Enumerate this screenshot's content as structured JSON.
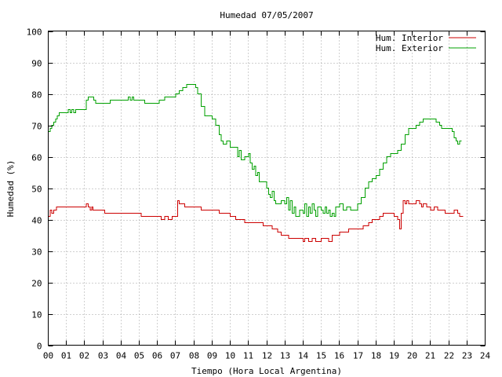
{
  "chart_data": {
    "type": "line",
    "title": "Humedad 07/05/2007",
    "xlabel": "Tiempo (Hora Local Argentina)",
    "ylabel": "Humedad (%)",
    "xlim": [
      0,
      24
    ],
    "ylim": [
      0,
      100
    ],
    "x_ticks": [
      "00",
      "01",
      "02",
      "03",
      "04",
      "05",
      "06",
      "07",
      "08",
      "09",
      "10",
      "11",
      "12",
      "13",
      "14",
      "15",
      "16",
      "17",
      "18",
      "19",
      "20",
      "21",
      "22",
      "23",
      "24"
    ],
    "y_ticks": [
      "0",
      "10",
      "20",
      "30",
      "40",
      "50",
      "60",
      "70",
      "80",
      "90",
      "100"
    ],
    "grid": true,
    "legend_position": "top-right",
    "series": [
      {
        "name": "Hum. Interior",
        "color": "#cc0000",
        "points": [
          [
            0.0,
            41
          ],
          [
            0.1,
            43
          ],
          [
            0.2,
            42
          ],
          [
            0.3,
            43
          ],
          [
            0.4,
            43
          ],
          [
            0.45,
            44
          ],
          [
            0.8,
            44
          ],
          [
            1.0,
            44
          ],
          [
            1.5,
            44
          ],
          [
            2.0,
            44
          ],
          [
            2.1,
            45
          ],
          [
            2.2,
            44
          ],
          [
            2.3,
            43
          ],
          [
            2.4,
            44
          ],
          [
            2.45,
            43
          ],
          [
            2.5,
            43
          ],
          [
            3.0,
            43
          ],
          [
            3.1,
            42
          ],
          [
            4.0,
            42
          ],
          [
            4.5,
            42
          ],
          [
            5.0,
            42
          ],
          [
            5.1,
            41
          ],
          [
            6.0,
            41
          ],
          [
            6.2,
            40
          ],
          [
            6.4,
            41
          ],
          [
            6.6,
            40
          ],
          [
            6.8,
            41
          ],
          [
            7.0,
            41
          ],
          [
            7.1,
            46
          ],
          [
            7.2,
            45
          ],
          [
            7.4,
            45
          ],
          [
            7.5,
            44
          ],
          [
            8.0,
            44
          ],
          [
            8.4,
            43
          ],
          [
            9.0,
            43
          ],
          [
            9.4,
            42
          ],
          [
            9.9,
            42
          ],
          [
            10.0,
            41
          ],
          [
            10.3,
            40
          ],
          [
            10.6,
            40
          ],
          [
            10.8,
            39
          ],
          [
            11.5,
            39
          ],
          [
            11.8,
            38
          ],
          [
            12.0,
            38
          ],
          [
            12.3,
            37
          ],
          [
            12.6,
            36
          ],
          [
            12.8,
            35
          ],
          [
            13.0,
            35
          ],
          [
            13.2,
            34
          ],
          [
            13.8,
            34
          ],
          [
            14.0,
            33
          ],
          [
            14.1,
            34
          ],
          [
            14.3,
            33
          ],
          [
            14.5,
            34
          ],
          [
            14.7,
            33
          ],
          [
            15.0,
            34
          ],
          [
            15.2,
            34
          ],
          [
            15.4,
            33
          ],
          [
            15.6,
            35
          ],
          [
            15.8,
            35
          ],
          [
            16.0,
            36
          ],
          [
            16.3,
            36
          ],
          [
            16.5,
            37
          ],
          [
            17.0,
            37
          ],
          [
            17.3,
            38
          ],
          [
            17.6,
            39
          ],
          [
            17.8,
            40
          ],
          [
            18.0,
            40
          ],
          [
            18.2,
            41
          ],
          [
            18.4,
            42
          ],
          [
            18.8,
            42
          ],
          [
            19.0,
            41
          ],
          [
            19.2,
            40
          ],
          [
            19.3,
            37
          ],
          [
            19.4,
            42
          ],
          [
            19.5,
            46
          ],
          [
            19.6,
            45
          ],
          [
            19.7,
            46
          ],
          [
            19.8,
            45
          ],
          [
            20.0,
            45
          ],
          [
            20.2,
            46
          ],
          [
            20.4,
            45
          ],
          [
            20.5,
            44
          ],
          [
            20.6,
            45
          ],
          [
            20.8,
            44
          ],
          [
            21.0,
            43
          ],
          [
            21.2,
            44
          ],
          [
            21.4,
            43
          ],
          [
            21.6,
            43
          ],
          [
            21.8,
            42
          ],
          [
            22.0,
            42
          ],
          [
            22.2,
            42
          ],
          [
            22.3,
            43
          ],
          [
            22.5,
            42
          ],
          [
            22.6,
            41
          ],
          [
            22.8,
            41
          ]
        ]
      },
      {
        "name": "Hum. Exterior",
        "color": "#00a000",
        "points": [
          [
            0.0,
            68
          ],
          [
            0.1,
            69
          ],
          [
            0.2,
            70
          ],
          [
            0.3,
            71
          ],
          [
            0.4,
            72
          ],
          [
            0.5,
            73
          ],
          [
            0.6,
            74
          ],
          [
            1.0,
            74
          ],
          [
            1.1,
            75
          ],
          [
            1.2,
            74
          ],
          [
            1.3,
            75
          ],
          [
            1.4,
            74
          ],
          [
            1.5,
            75
          ],
          [
            1.8,
            75
          ],
          [
            2.0,
            75
          ],
          [
            2.1,
            78
          ],
          [
            2.2,
            79
          ],
          [
            2.4,
            79
          ],
          [
            2.5,
            78
          ],
          [
            2.6,
            77
          ],
          [
            3.0,
            77
          ],
          [
            3.3,
            77
          ],
          [
            3.4,
            78
          ],
          [
            4.0,
            78
          ],
          [
            4.2,
            78
          ],
          [
            4.4,
            79
          ],
          [
            4.5,
            78
          ],
          [
            4.6,
            79
          ],
          [
            4.7,
            78
          ],
          [
            5.0,
            78
          ],
          [
            5.2,
            78
          ],
          [
            5.3,
            77
          ],
          [
            6.0,
            77
          ],
          [
            6.1,
            78
          ],
          [
            6.3,
            78
          ],
          [
            6.4,
            79
          ],
          [
            6.6,
            79
          ],
          [
            6.8,
            79
          ],
          [
            7.0,
            80
          ],
          [
            7.2,
            81
          ],
          [
            7.4,
            82
          ],
          [
            7.6,
            83
          ],
          [
            8.0,
            83
          ],
          [
            8.1,
            82
          ],
          [
            8.2,
            80
          ],
          [
            8.4,
            76
          ],
          [
            8.6,
            73
          ],
          [
            9.0,
            72
          ],
          [
            9.2,
            70
          ],
          [
            9.4,
            67
          ],
          [
            9.5,
            65
          ],
          [
            9.6,
            64
          ],
          [
            9.8,
            65
          ],
          [
            10.0,
            63
          ],
          [
            10.2,
            63
          ],
          [
            10.4,
            60
          ],
          [
            10.5,
            62
          ],
          [
            10.6,
            59
          ],
          [
            10.8,
            60
          ],
          [
            11.0,
            61
          ],
          [
            11.1,
            58
          ],
          [
            11.2,
            56
          ],
          [
            11.3,
            57
          ],
          [
            11.4,
            54
          ],
          [
            11.5,
            55
          ],
          [
            11.6,
            52
          ],
          [
            11.8,
            52
          ],
          [
            12.0,
            50
          ],
          [
            12.1,
            48
          ],
          [
            12.2,
            47
          ],
          [
            12.3,
            49
          ],
          [
            12.4,
            46
          ],
          [
            12.5,
            45
          ],
          [
            12.7,
            45
          ],
          [
            12.8,
            46
          ],
          [
            13.0,
            45
          ],
          [
            13.1,
            47
          ],
          [
            13.2,
            43
          ],
          [
            13.3,
            46
          ],
          [
            13.4,
            42
          ],
          [
            13.5,
            44
          ],
          [
            13.6,
            41
          ],
          [
            13.8,
            43
          ],
          [
            14.0,
            42
          ],
          [
            14.1,
            45
          ],
          [
            14.2,
            41
          ],
          [
            14.3,
            44
          ],
          [
            14.4,
            42
          ],
          [
            14.5,
            45
          ],
          [
            14.6,
            43
          ],
          [
            14.7,
            41
          ],
          [
            14.8,
            44
          ],
          [
            15.0,
            43
          ],
          [
            15.1,
            42
          ],
          [
            15.2,
            44
          ],
          [
            15.3,
            42
          ],
          [
            15.4,
            43
          ],
          [
            15.5,
            41
          ],
          [
            15.6,
            42
          ],
          [
            15.7,
            41
          ],
          [
            15.8,
            44
          ],
          [
            16.0,
            45
          ],
          [
            16.2,
            43
          ],
          [
            16.4,
            44
          ],
          [
            16.6,
            43
          ],
          [
            16.8,
            43
          ],
          [
            17.0,
            45
          ],
          [
            17.2,
            47
          ],
          [
            17.4,
            50
          ],
          [
            17.6,
            52
          ],
          [
            17.8,
            53
          ],
          [
            18.0,
            54
          ],
          [
            18.2,
            56
          ],
          [
            18.4,
            58
          ],
          [
            18.6,
            60
          ],
          [
            18.8,
            61
          ],
          [
            19.0,
            61
          ],
          [
            19.2,
            62
          ],
          [
            19.4,
            64
          ],
          [
            19.6,
            67
          ],
          [
            19.8,
            69
          ],
          [
            20.0,
            69
          ],
          [
            20.2,
            70
          ],
          [
            20.4,
            71
          ],
          [
            20.6,
            72
          ],
          [
            21.0,
            72
          ],
          [
            21.2,
            72
          ],
          [
            21.3,
            71
          ],
          [
            21.5,
            70
          ],
          [
            21.6,
            69
          ],
          [
            22.0,
            69
          ],
          [
            22.1,
            69
          ],
          [
            22.2,
            68
          ],
          [
            22.3,
            66
          ],
          [
            22.4,
            65
          ],
          [
            22.5,
            64
          ],
          [
            22.6,
            65
          ],
          [
            22.7,
            65
          ]
        ]
      }
    ]
  }
}
